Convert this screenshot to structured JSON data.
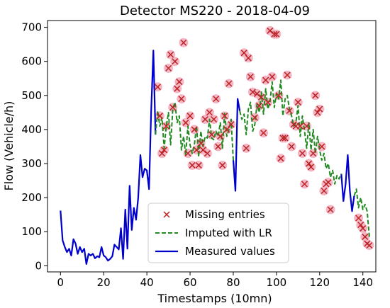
{
  "chart_data": {
    "type": "line",
    "title": "Detector MS220 - 2018-04-09",
    "xlabel": "Timestamps (10mn)",
    "ylabel": "Flow (Vehicle/h)",
    "xlim": [
      -6,
      146
    ],
    "ylim": [
      -18,
      720
    ],
    "xticks": [
      0,
      20,
      40,
      60,
      80,
      100,
      120,
      140
    ],
    "yticks": [
      0,
      100,
      200,
      300,
      400,
      500,
      600,
      700
    ],
    "grid": false,
    "legend_position": "bottom-center",
    "colors": {
      "measured": "#0000cc",
      "imputed": "#228b22",
      "missing": "#bb2222",
      "missing_halo": "#f4b6c4"
    },
    "legend": [
      {
        "key": "missing",
        "label": "Missing entries"
      },
      {
        "key": "imputed",
        "label": "Imputed with LR"
      },
      {
        "key": "measured",
        "label": "Measured values"
      }
    ],
    "series": [
      {
        "name": "Measured values",
        "key": "measured",
        "style": "solid-line",
        "segments": [
          [
            [
              0,
              162
            ],
            [
              1,
              75
            ],
            [
              2,
              55
            ],
            [
              3,
              40
            ],
            [
              4,
              50
            ],
            [
              5,
              30
            ],
            [
              6,
              78
            ],
            [
              7,
              65
            ],
            [
              8,
              35
            ],
            [
              9,
              55
            ],
            [
              10,
              40
            ],
            [
              11,
              50
            ],
            [
              12,
              5
            ],
            [
              13,
              35
            ],
            [
              14,
              30
            ],
            [
              15,
              35
            ],
            [
              16,
              22
            ],
            [
              17,
              28
            ],
            [
              18,
              25
            ],
            [
              19,
              55
            ],
            [
              20,
              30
            ],
            [
              21,
              25
            ],
            [
              22,
              15
            ],
            [
              23,
              20
            ],
            [
              24,
              28
            ],
            [
              25,
              62
            ],
            [
              26,
              55
            ],
            [
              27,
              48
            ],
            [
              28,
              110
            ],
            [
              29,
              20
            ],
            [
              30,
              165
            ],
            [
              31,
              50
            ],
            [
              32,
              235
            ],
            [
              33,
              105
            ],
            [
              34,
              170
            ],
            [
              35,
              135
            ],
            [
              36,
              200
            ],
            [
              37,
              325
            ],
            [
              38,
              260
            ],
            [
              39,
              285
            ],
            [
              40,
              280
            ],
            [
              41,
              225
            ],
            [
              42,
              455
            ],
            [
              43,
              632
            ],
            [
              44,
              385
            ]
          ],
          [
            [
              80,
              310
            ],
            [
              81,
              220
            ],
            [
              82,
              490
            ],
            [
              83,
              455
            ]
          ],
          [
            [
              130,
              270
            ],
            [
              131,
              190
            ],
            [
              132,
              240
            ],
            [
              133,
              325
            ],
            [
              134,
              220
            ],
            [
              135,
              160
            ],
            [
              136,
              205
            ]
          ]
        ]
      },
      {
        "name": "Imputed with LR",
        "key": "imputed",
        "style": "dashed-line",
        "segments": [
          [
            [
              44,
              385
            ],
            [
              45,
              455
            ],
            [
              46,
              410
            ],
            [
              47,
              435
            ],
            [
              48,
              345
            ],
            [
              49,
              410
            ],
            [
              50,
              450
            ],
            [
              51,
              355
            ],
            [
              52,
              460
            ],
            [
              53,
              480
            ],
            [
              54,
              420
            ],
            [
              55,
              440
            ],
            [
              56,
              340
            ],
            [
              57,
              380
            ],
            [
              58,
              325
            ],
            [
              59,
              410
            ],
            [
              60,
              355
            ],
            [
              61,
              330
            ],
            [
              62,
              355
            ],
            [
              63,
              410
            ],
            [
              64,
              320
            ],
            [
              65,
              395
            ],
            [
              66,
              350
            ],
            [
              67,
              380
            ],
            [
              68,
              375
            ],
            [
              69,
              430
            ],
            [
              70,
              375
            ],
            [
              71,
              370
            ],
            [
              72,
              395
            ],
            [
              73,
              380
            ],
            [
              74,
              420
            ],
            [
              75,
              345
            ],
            [
              76,
              450
            ],
            [
              77,
              380
            ],
            [
              78,
              400
            ],
            [
              79,
              430
            ],
            [
              80,
              310
            ]
          ],
          [
            [
              83,
              455
            ],
            [
              84,
              430
            ],
            [
              85,
              445
            ],
            [
              86,
              385
            ],
            [
              87,
              460
            ],
            [
              88,
              480
            ],
            [
              89,
              395
            ],
            [
              90,
              415
            ],
            [
              91,
              475
            ],
            [
              92,
              450
            ],
            [
              93,
              510
            ],
            [
              94,
              445
            ],
            [
              95,
              520
            ],
            [
              96,
              460
            ],
            [
              97,
              480
            ],
            [
              98,
              540
            ],
            [
              99,
              465
            ],
            [
              100,
              505
            ],
            [
              101,
              490
            ],
            [
              102,
              545
            ],
            [
              103,
              440
            ],
            [
              104,
              490
            ],
            [
              105,
              500
            ],
            [
              106,
              460
            ],
            [
              107,
              440
            ],
            [
              108,
              410
            ],
            [
              109,
              420
            ],
            [
              110,
              470
            ],
            [
              111,
              380
            ],
            [
              112,
              440
            ],
            [
              113,
              395
            ],
            [
              114,
              345
            ],
            [
              115,
              420
            ],
            [
              116,
              340
            ],
            [
              117,
              400
            ],
            [
              118,
              330
            ],
            [
              119,
              380
            ],
            [
              120,
              340
            ],
            [
              121,
              310
            ],
            [
              122,
              330
            ],
            [
              123,
              285
            ],
            [
              124,
              300
            ],
            [
              125,
              260
            ],
            [
              126,
              280
            ],
            [
              127,
              240
            ],
            [
              128,
              265
            ],
            [
              129,
              255
            ],
            [
              130,
              270
            ]
          ],
          [
            [
              136,
              205
            ],
            [
              137,
              225
            ],
            [
              138,
              170
            ],
            [
              139,
              200
            ],
            [
              140,
              165
            ],
            [
              141,
              180
            ],
            [
              142,
              160
            ],
            [
              143,
              85
            ]
          ]
        ]
      },
      {
        "name": "Missing entries",
        "key": "missing",
        "style": "x-marker",
        "points": [
          [
            45,
            525
          ],
          [
            46,
            440
          ],
          [
            47,
            330
          ],
          [
            48,
            340
          ],
          [
            49,
            410
          ],
          [
            50,
            580
          ],
          [
            51,
            620
          ],
          [
            52,
            465
          ],
          [
            53,
            600
          ],
          [
            54,
            520
          ],
          [
            55,
            540
          ],
          [
            56,
            490
          ],
          [
            57,
            655
          ],
          [
            58,
            420
          ],
          [
            59,
            330
          ],
          [
            60,
            440
          ],
          [
            61,
            295
          ],
          [
            62,
            400
          ],
          [
            63,
            340
          ],
          [
            64,
            295
          ],
          [
            65,
            360
          ],
          [
            66,
            340
          ],
          [
            67,
            430
          ],
          [
            68,
            330
          ],
          [
            69,
            450
          ],
          [
            70,
            385
          ],
          [
            71,
            430
          ],
          [
            72,
            490
          ],
          [
            73,
            350
          ],
          [
            74,
            380
          ],
          [
            75,
            295
          ],
          [
            76,
            440
          ],
          [
            77,
            400
          ],
          [
            78,
            535
          ],
          [
            79,
            415
          ],
          [
            85,
            625
          ],
          [
            86,
            345
          ],
          [
            87,
            610
          ],
          [
            88,
            555
          ],
          [
            89,
            510
          ],
          [
            90,
            435
          ],
          [
            91,
            505
          ],
          [
            92,
            470
          ],
          [
            93,
            495
          ],
          [
            94,
            390
          ],
          [
            95,
            545
          ],
          [
            96,
            480
          ],
          [
            97,
            690
          ],
          [
            98,
            555
          ],
          [
            99,
            680
          ],
          [
            100,
            680
          ],
          [
            101,
            500
          ],
          [
            102,
            315
          ],
          [
            103,
            375
          ],
          [
            104,
            375
          ],
          [
            105,
            560
          ],
          [
            106,
            455
          ],
          [
            107,
            350
          ],
          [
            108,
            415
          ],
          [
            109,
            410
          ],
          [
            110,
            480
          ],
          [
            111,
            410
          ],
          [
            112,
            330
          ],
          [
            113,
            240
          ],
          [
            114,
            410
          ],
          [
            115,
            300
          ],
          [
            116,
            290
          ],
          [
            117,
            330
          ],
          [
            118,
            500
          ],
          [
            119,
            450
          ],
          [
            120,
            460
          ],
          [
            121,
            350
          ],
          [
            122,
            220
          ],
          [
            123,
            240
          ],
          [
            124,
            245
          ],
          [
            125,
            165
          ],
          [
            138,
            140
          ],
          [
            139,
            120
          ],
          [
            140,
            110
          ],
          [
            141,
            85
          ],
          [
            142,
            65
          ],
          [
            143,
            60
          ]
        ]
      }
    ]
  }
}
